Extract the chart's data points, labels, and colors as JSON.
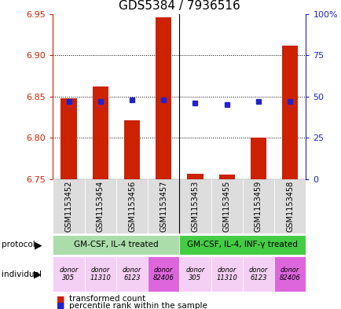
{
  "title": "GDS5384 / 7936516",
  "samples": [
    "GSM1153452",
    "GSM1153454",
    "GSM1153456",
    "GSM1153457",
    "GSM1153453",
    "GSM1153455",
    "GSM1153459",
    "GSM1153458"
  ],
  "red_values": [
    6.848,
    6.862,
    6.821,
    6.946,
    6.757,
    6.756,
    6.8,
    6.912
  ],
  "blue_values_pct": [
    47,
    47,
    48,
    48,
    46,
    45,
    47,
    47
  ],
  "ylim": [
    6.75,
    6.95
  ],
  "y_ticks": [
    6.75,
    6.8,
    6.85,
    6.9,
    6.95
  ],
  "y2_ticks": [
    0,
    25,
    50,
    75,
    100
  ],
  "y2_labels": [
    "0",
    "25",
    "50",
    "75",
    "100%"
  ],
  "base_value": 6.75,
  "protocol_labels": [
    "GM-CSF, IL-4 treated",
    "GM-CSF, IL-4, INF-γ treated"
  ],
  "protocol_groups": [
    4,
    4
  ],
  "protocol_color_left": "#aaddaa",
  "protocol_color_right": "#44cc44",
  "individual_labels": [
    "donor\n305",
    "donor\n11310",
    "donor\n6123",
    "donor\n82406",
    "donor\n305",
    "donor\n11310",
    "donor\n6123",
    "donor\n82406"
  ],
  "individual_colors": [
    "#f5d0f5",
    "#f5d0f5",
    "#f5d0f5",
    "#dd66dd",
    "#f5d0f5",
    "#f5d0f5",
    "#f5d0f5",
    "#dd66dd"
  ],
  "bar_color": "#cc2200",
  "dot_color": "#2222cc",
  "axis_color_left": "#cc2200",
  "axis_color_right": "#2222cc",
  "title_fontsize": 11,
  "tick_fontsize": 8,
  "sample_fontsize": 7,
  "annotation_fontsize": 7.5,
  "legend_fontsize": 7.5
}
